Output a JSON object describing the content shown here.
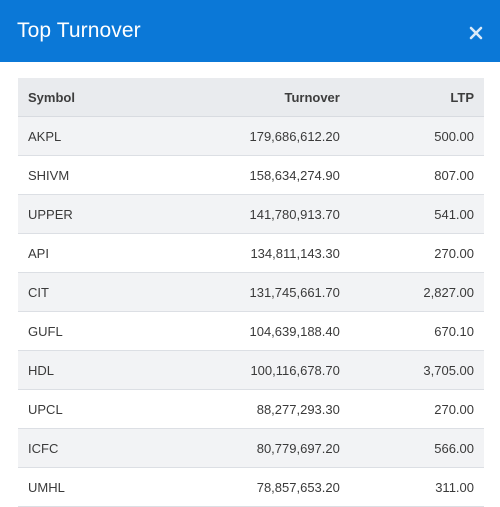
{
  "modal": {
    "title": "Top Turnover",
    "close_icon": "close-x-icon"
  },
  "table": {
    "headers": {
      "symbol": "Symbol",
      "turnover": "Turnover",
      "ltp": "LTP"
    },
    "rows": [
      {
        "symbol": "AKPL",
        "turnover": "179,686,612.20",
        "ltp": "500.00"
      },
      {
        "symbol": "SHIVM",
        "turnover": "158,634,274.90",
        "ltp": "807.00"
      },
      {
        "symbol": "UPPER",
        "turnover": "141,780,913.70",
        "ltp": "541.00"
      },
      {
        "symbol": "API",
        "turnover": "134,811,143.30",
        "ltp": "270.00"
      },
      {
        "symbol": "CIT",
        "turnover": "131,745,661.70",
        "ltp": "2,827.00"
      },
      {
        "symbol": "GUFL",
        "turnover": "104,639,188.40",
        "ltp": "670.10"
      },
      {
        "symbol": "HDL",
        "turnover": "100,116,678.70",
        "ltp": "3,705.00"
      },
      {
        "symbol": "UPCL",
        "turnover": "88,277,293.30",
        "ltp": "270.00"
      },
      {
        "symbol": "ICFC",
        "turnover": "80,779,697.20",
        "ltp": "566.00"
      },
      {
        "symbol": "UMHL",
        "turnover": "78,857,653.20",
        "ltp": "311.00"
      }
    ]
  },
  "colors": {
    "header_bg": "#0b78d7",
    "header_text": "#ffffff",
    "table_head_bg": "#e9ebee",
    "row_stripe": "#f2f3f5"
  }
}
